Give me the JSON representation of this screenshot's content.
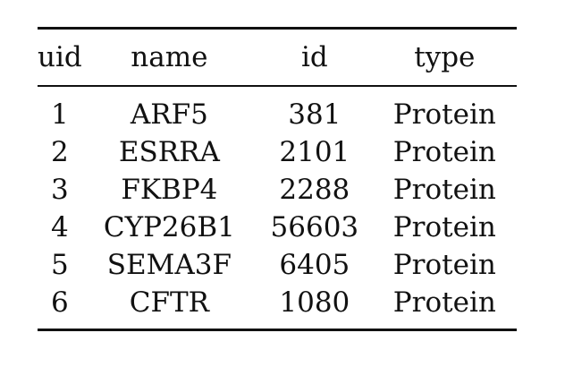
{
  "table": {
    "headers": [
      "uid",
      "name",
      "id",
      "type"
    ],
    "rows": [
      [
        "1",
        "ARF5",
        "381",
        "Protein"
      ],
      [
        "2",
        "ESRRA",
        "2101",
        "Protein"
      ],
      [
        "3",
        "FKBP4",
        "2288",
        "Protein"
      ],
      [
        "4",
        "CYP26B1",
        "56603",
        "Protein"
      ],
      [
        "5",
        "SEMA3F",
        "6405",
        "Protein"
      ],
      [
        "6",
        "CFTR",
        "1080",
        "Protein"
      ]
    ]
  }
}
